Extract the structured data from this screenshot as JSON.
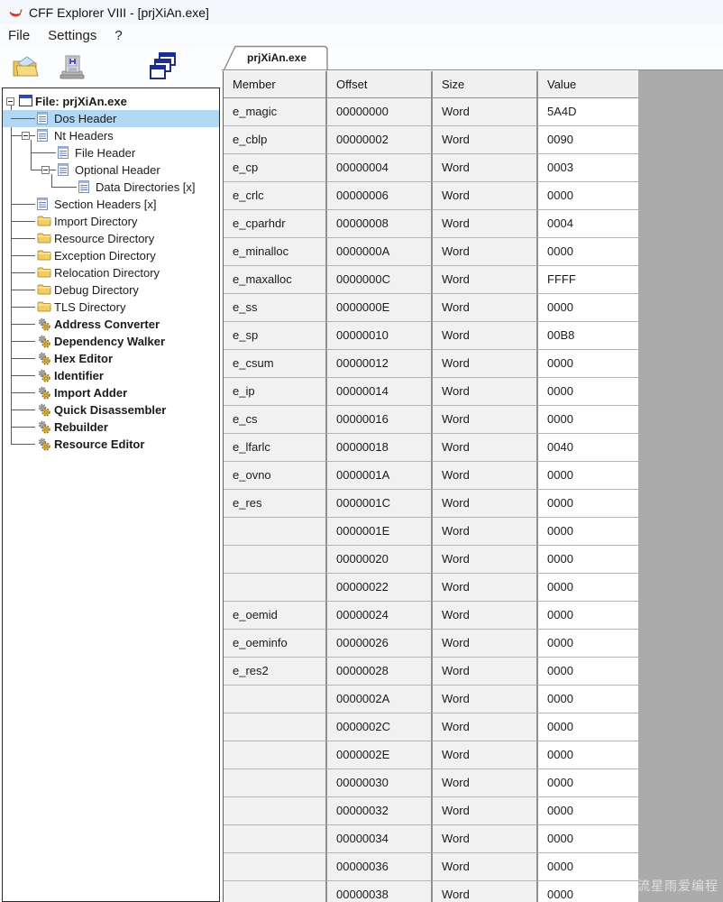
{
  "window": {
    "title": "CFF Explorer VIII - [prjXiAn.exe]"
  },
  "menu": {
    "items": [
      "File",
      "Settings",
      "?"
    ]
  },
  "toolbar": {
    "buttons": [
      {
        "name": "open-file-button",
        "icon": "open-folder-icon"
      },
      {
        "name": "save-file-button",
        "icon": "save-floppy-icon"
      },
      {
        "name": "cascade-windows-button",
        "icon": "cascade-windows-icon"
      }
    ]
  },
  "tabs": {
    "active": "prjXiAn.exe"
  },
  "tree": {
    "root": {
      "label": "File: prjXiAn.exe",
      "icon": "window"
    },
    "items": [
      {
        "label": "Dos Header",
        "level": 1,
        "icon": "document",
        "selected": true
      },
      {
        "label": "Nt Headers",
        "level": 1,
        "icon": "document",
        "expander": true
      },
      {
        "label": "File Header",
        "level": 2,
        "icon": "document"
      },
      {
        "label": "Optional Header",
        "level": 2,
        "icon": "document",
        "expander": true
      },
      {
        "label": "Data Directories [x]",
        "level": 3,
        "icon": "document"
      },
      {
        "label": "Section Headers [x]",
        "level": 1,
        "icon": "document"
      },
      {
        "label": "Import Directory",
        "level": 1,
        "icon": "folder"
      },
      {
        "label": "Resource Directory",
        "level": 1,
        "icon": "folder"
      },
      {
        "label": "Exception Directory",
        "level": 1,
        "icon": "folder"
      },
      {
        "label": "Relocation Directory",
        "level": 1,
        "icon": "folder"
      },
      {
        "label": "Debug Directory",
        "level": 1,
        "icon": "folder"
      },
      {
        "label": "TLS Directory",
        "level": 1,
        "icon": "folder"
      },
      {
        "label": "Address Converter",
        "level": 1,
        "icon": "gears",
        "bold": true
      },
      {
        "label": "Dependency Walker",
        "level": 1,
        "icon": "gears",
        "bold": true
      },
      {
        "label": "Hex Editor",
        "level": 1,
        "icon": "gears",
        "bold": true
      },
      {
        "label": "Identifier",
        "level": 1,
        "icon": "gears",
        "bold": true
      },
      {
        "label": "Import Adder",
        "level": 1,
        "icon": "gears",
        "bold": true
      },
      {
        "label": "Quick Disassembler",
        "level": 1,
        "icon": "gears",
        "bold": true
      },
      {
        "label": "Rebuilder",
        "level": 1,
        "icon": "gears",
        "bold": true
      },
      {
        "label": "Resource Editor",
        "level": 1,
        "icon": "gears",
        "bold": true
      }
    ]
  },
  "table": {
    "columns": [
      "Member",
      "Offset",
      "Size",
      "Value"
    ],
    "rows": [
      [
        "e_magic",
        "00000000",
        "Word",
        "5A4D"
      ],
      [
        "e_cblp",
        "00000002",
        "Word",
        "0090"
      ],
      [
        "e_cp",
        "00000004",
        "Word",
        "0003"
      ],
      [
        "e_crlc",
        "00000006",
        "Word",
        "0000"
      ],
      [
        "e_cparhdr",
        "00000008",
        "Word",
        "0004"
      ],
      [
        "e_minalloc",
        "0000000A",
        "Word",
        "0000"
      ],
      [
        "e_maxalloc",
        "0000000C",
        "Word",
        "FFFF"
      ],
      [
        "e_ss",
        "0000000E",
        "Word",
        "0000"
      ],
      [
        "e_sp",
        "00000010",
        "Word",
        "00B8"
      ],
      [
        "e_csum",
        "00000012",
        "Word",
        "0000"
      ],
      [
        "e_ip",
        "00000014",
        "Word",
        "0000"
      ],
      [
        "e_cs",
        "00000016",
        "Word",
        "0000"
      ],
      [
        "e_lfarlc",
        "00000018",
        "Word",
        "0040"
      ],
      [
        "e_ovno",
        "0000001A",
        "Word",
        "0000"
      ],
      [
        "e_res",
        "0000001C",
        "Word",
        "0000"
      ],
      [
        "",
        "0000001E",
        "Word",
        "0000"
      ],
      [
        "",
        "00000020",
        "Word",
        "0000"
      ],
      [
        "",
        "00000022",
        "Word",
        "0000"
      ],
      [
        "e_oemid",
        "00000024",
        "Word",
        "0000"
      ],
      [
        "e_oeminfo",
        "00000026",
        "Word",
        "0000"
      ],
      [
        "e_res2",
        "00000028",
        "Word",
        "0000"
      ],
      [
        "",
        "0000002A",
        "Word",
        "0000"
      ],
      [
        "",
        "0000002C",
        "Word",
        "0000"
      ],
      [
        "",
        "0000002E",
        "Word",
        "0000"
      ],
      [
        "",
        "00000030",
        "Word",
        "0000"
      ],
      [
        "",
        "00000032",
        "Word",
        "0000"
      ],
      [
        "",
        "00000034",
        "Word",
        "0000"
      ],
      [
        "",
        "00000036",
        "Word",
        "0000"
      ],
      [
        "",
        "00000038",
        "Word",
        "0000"
      ]
    ]
  },
  "watermark": "CSDN @流星雨爱编程",
  "colors": {
    "selection": "#b1d7f3",
    "panel_gray": "#ababab",
    "header_bg": "#f0f0f0",
    "cell_bg": "#f1f1f1",
    "value_bg": "#ffffff",
    "grid_line": "#8f8f8f",
    "accent_navy": "#1c2d8c",
    "folder_gold": "#f2cd60"
  }
}
